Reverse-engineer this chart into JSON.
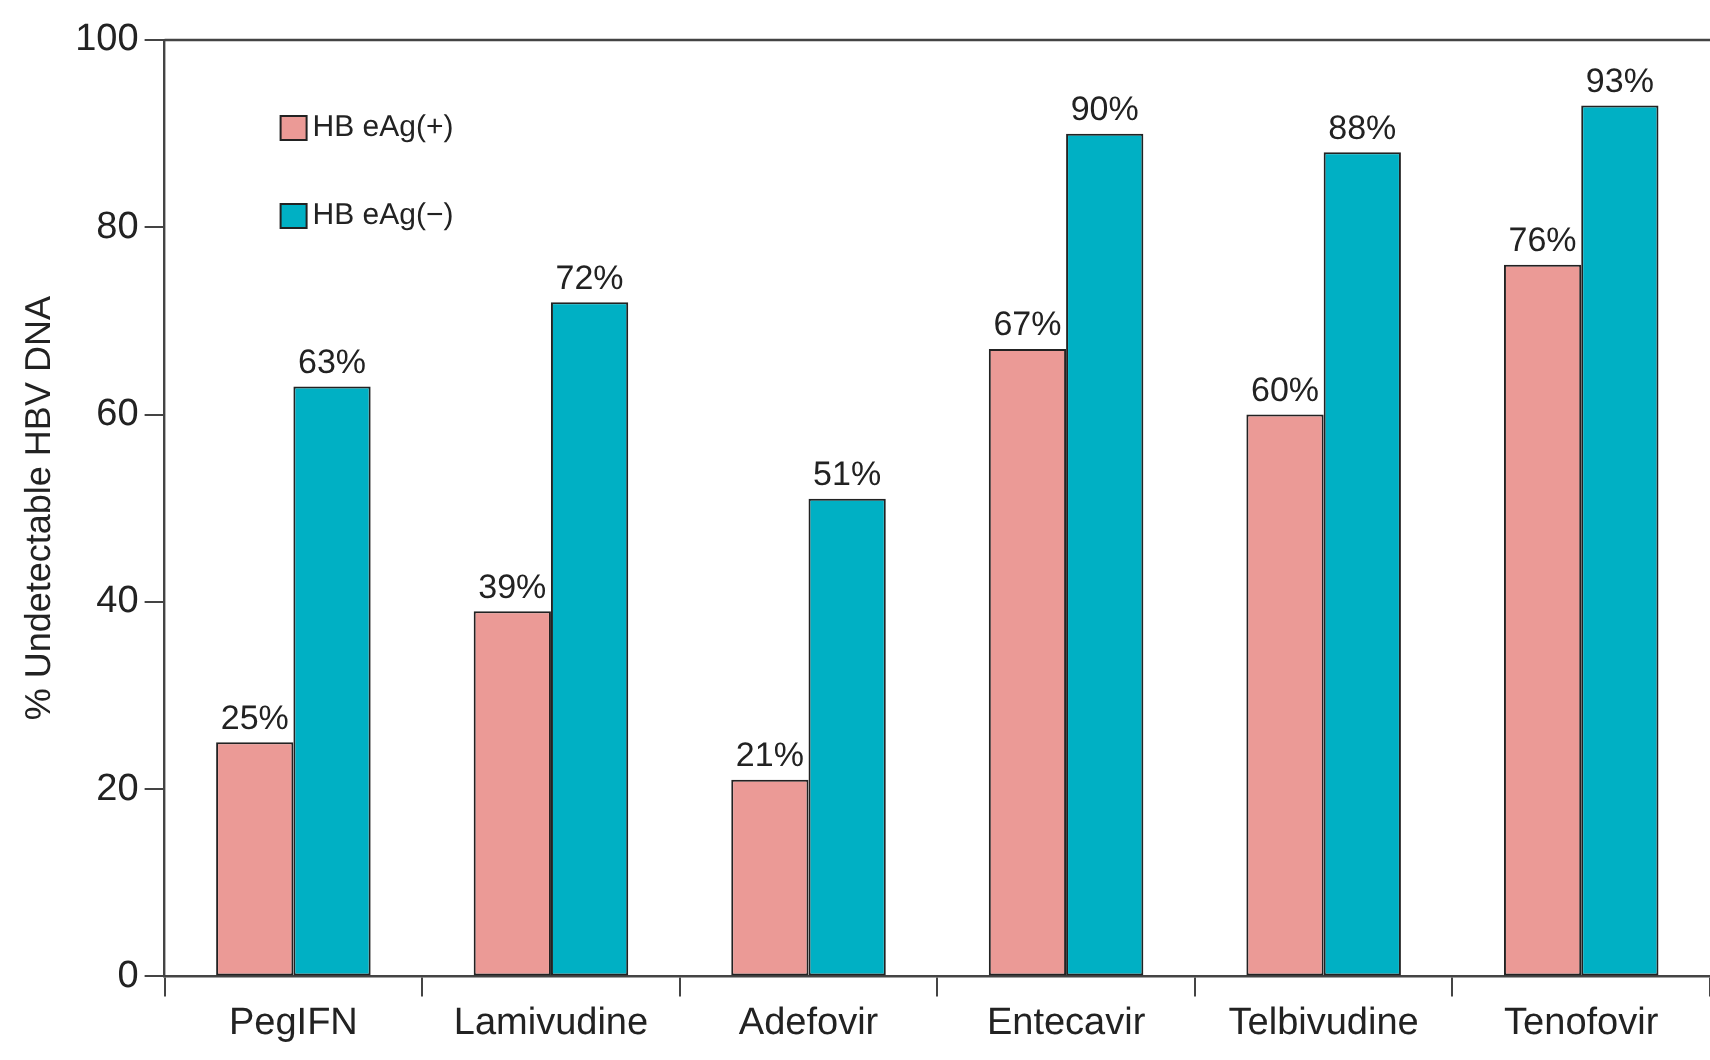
{
  "chart_data": {
    "type": "bar",
    "ylabel": "% Undetectable HBV DNA",
    "categories": [
      "PegIFN",
      "Lamivudine",
      "Adefovir",
      "Entecavir",
      "Telbivudine",
      "Tenofovir"
    ],
    "series": [
      {
        "name": "HB eAg(+)",
        "color": "#eb9a96",
        "values": [
          25,
          39,
          21,
          67,
          60,
          76
        ],
        "value_labels": [
          "25%",
          "39%",
          "21%",
          "67%",
          "60%",
          "76%"
        ]
      },
      {
        "name": "HB eAg(−)",
        "color": "#00b0c4",
        "values": [
          63,
          72,
          51,
          90,
          88,
          93
        ],
        "value_labels": [
          "63%",
          "72%",
          "51%",
          "90%",
          "88%",
          "93%"
        ]
      }
    ],
    "ylim": [
      0,
      100
    ],
    "yticks": [
      0,
      20,
      40,
      60,
      80,
      100
    ],
    "grid": false,
    "legend": "top left"
  }
}
